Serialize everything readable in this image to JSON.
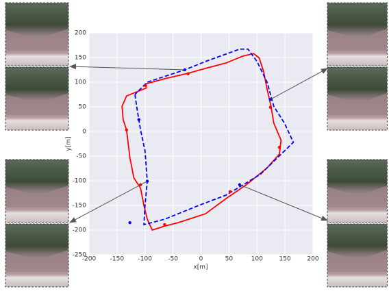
{
  "chart_data": {
    "type": "line",
    "x_label": "x[m]",
    "y_label": "y[m]",
    "xlim": [
      -200,
      200
    ],
    "ylim": [
      -250,
      200
    ],
    "xticks": [
      -200,
      -150,
      -100,
      -50,
      0,
      50,
      100,
      150,
      200
    ],
    "yticks": [
      -250,
      -200,
      -150,
      -100,
      -50,
      0,
      50,
      100,
      150,
      200
    ],
    "grid": true,
    "series": [
      {
        "color": "#ff0000",
        "dash": false,
        "x": [
          -96,
          -133,
          -141,
          -139,
          -133,
          -127,
          -120,
          -108,
          -102,
          -96,
          -87,
          -65,
          -41,
          8,
          45,
          81,
          118,
          140,
          143,
          130,
          125,
          118,
          112,
          104,
          94,
          75,
          45,
          8,
          -23,
          -65,
          -100
        ],
        "values": [
          89,
          72,
          51,
          24,
          3,
          -53,
          -94,
          -115,
          -150,
          -178,
          -200,
          -192,
          -185,
          -167,
          -136,
          -108,
          -74,
          -46,
          -18,
          17,
          51,
          86,
          121,
          149,
          158,
          153,
          139,
          128,
          118,
          107,
          96
        ]
      },
      {
        "color": "#0000ff",
        "dash": true,
        "x": [
          -118,
          -114,
          -108,
          -100,
          -96,
          -100,
          -102,
          -65,
          -4,
          45,
          106,
          165,
          149,
          130,
          118,
          100,
          84,
          69,
          8,
          -29,
          -96,
          -118
        ],
        "values": [
          75,
          44,
          3,
          -39,
          -101,
          -150,
          -189,
          -178,
          -150,
          -129,
          -87,
          -22,
          17,
          51,
          100,
          142,
          167,
          167,
          142,
          125,
          100,
          75
        ]
      }
    ],
    "markers": [
      {
        "color": "#ff0000",
        "x": [
          -99,
          -23,
          124,
          140,
          52,
          -65,
          -108,
          -133
        ],
        "values": [
          93,
          117,
          49,
          -32,
          -122,
          -189,
          -108,
          3
        ]
      },
      {
        "color": "#0000ff",
        "x": [
          -29,
          124,
          -111,
          -96,
          69,
          -127
        ],
        "values": [
          125,
          65,
          24,
          -101,
          -108,
          -185
        ]
      }
    ]
  }
}
